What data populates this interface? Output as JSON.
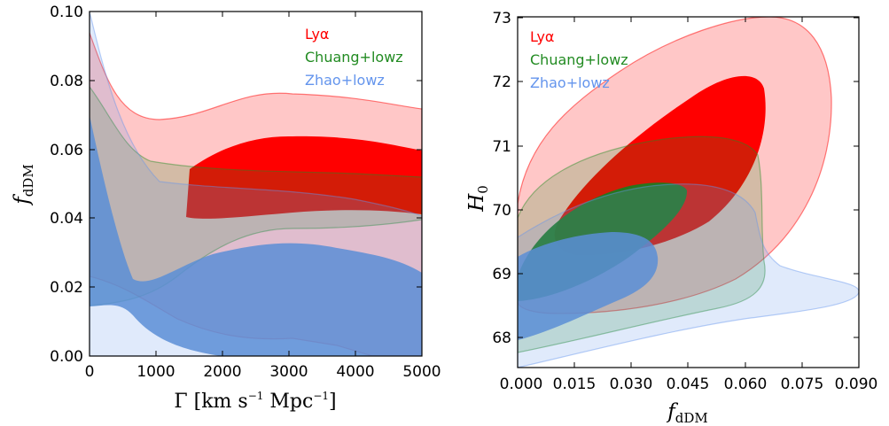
{
  "colors": {
    "lya": "#ff0000",
    "chuang": "#228b22",
    "zhao": "#6495ed"
  },
  "chart_data": [
    {
      "type": "contour",
      "xlabel": {
        "main": "Γ  [km s",
        "sup1": "−1",
        "mid": "  Mpc",
        "sup2": "−1",
        "end": "]"
      },
      "ylabel": {
        "main": "f",
        "sub": "dDM"
      },
      "xlim": [
        0,
        5000
      ],
      "ylim": [
        0.0,
        0.1
      ],
      "xticks": [
        "0",
        "1000",
        "2000",
        "3000",
        "4000",
        "5000"
      ],
      "yticks": [
        "0.00",
        "0.02",
        "0.04",
        "0.06",
        "0.08",
        "0.10"
      ],
      "legend": {
        "position": "top-right",
        "entries": [
          "Lyα",
          "Chuang+lowz",
          "Zhao+lowz"
        ]
      },
      "series": [
        {
          "name": "Lyα",
          "color_key": "lya",
          "contour_2sigma_upper": [
            [
              0,
              0.095
            ],
            [
              500,
              0.075
            ],
            [
              1000,
              0.069
            ],
            [
              2000,
              0.071
            ],
            [
              3000,
              0.076
            ],
            [
              4000,
              0.075
            ],
            [
              5000,
              0.072
            ]
          ],
          "contour_1sigma_upper": [
            [
              1700,
              0.059
            ],
            [
              2500,
              0.063
            ],
            [
              3000,
              0.064
            ],
            [
              4000,
              0.063
            ],
            [
              5000,
              0.06
            ]
          ]
        },
        {
          "name": "Chuang+lowz",
          "color_key": "chuang",
          "contour_2sigma_upper": [
            [
              0,
              0.08
            ],
            [
              500,
              0.068
            ],
            [
              1000,
              0.056
            ],
            [
              2000,
              0.053
            ],
            [
              3000,
              0.054
            ],
            [
              4000,
              0.053
            ],
            [
              5000,
              0.052
            ]
          ]
        },
        {
          "name": "Zhao+lowz",
          "color_key": "zhao",
          "contour_2sigma_upper": [
            [
              0,
              0.1
            ],
            [
              500,
              0.075
            ],
            [
              1000,
              0.056
            ],
            [
              2000,
              0.048
            ],
            [
              3000,
              0.046
            ],
            [
              4000,
              0.043
            ],
            [
              5000,
              0.04
            ]
          ],
          "contour_1sigma_upper": [
            [
              0,
              0.07
            ],
            [
              500,
              0.04
            ],
            [
              1000,
              0.021
            ],
            [
              2000,
              0.03
            ],
            [
              3000,
              0.032
            ],
            [
              4000,
              0.029
            ],
            [
              5000,
              0.024
            ]
          ]
        }
      ]
    },
    {
      "type": "contour",
      "xlabel": {
        "main": "f",
        "sub": "dDM"
      },
      "ylabel": {
        "main": "H",
        "sub": "0"
      },
      "xlim": [
        0.0,
        0.09
      ],
      "ylim": [
        67.5,
        73.0
      ],
      "xticks": [
        "0.000",
        "0.015",
        "0.030",
        "0.045",
        "0.060",
        "0.075",
        "0.090"
      ],
      "yticks": [
        "68",
        "69",
        "70",
        "71",
        "72",
        "73"
      ],
      "legend": {
        "position": "top-left",
        "entries": [
          "Lyα",
          "Chuang+lowz",
          "Zhao+lowz"
        ]
      },
      "series": [
        {
          "name": "Lyα",
          "color_key": "lya",
          "contour_2sigma_extent": {
            "x": [
              0.0,
              0.077
            ],
            "y": [
              68.4,
              73.0
            ]
          },
          "contour_1sigma_extent": {
            "x": [
              0.018,
              0.062
            ],
            "y": [
              69.3,
              72.1
            ]
          }
        },
        {
          "name": "Chuang+lowz",
          "color_key": "chuang",
          "contour_2sigma_extent": {
            "x": [
              0.0,
              0.061
            ],
            "y": [
              67.8,
              71.2
            ]
          },
          "contour_1sigma_extent": {
            "x": [
              0.0,
              0.042
            ],
            "y": [
              68.6,
              70.4
            ]
          }
        },
        {
          "name": "Zhao+lowz",
          "color_key": "zhao",
          "contour_2sigma_extent": {
            "x": [
              0.0,
              0.083
            ],
            "y": [
              67.5,
              70.4
            ]
          },
          "contour_1sigma_extent": {
            "x": [
              0.0,
              0.041
            ],
            "y": [
              67.8,
              69.6
            ]
          }
        }
      ]
    }
  ]
}
